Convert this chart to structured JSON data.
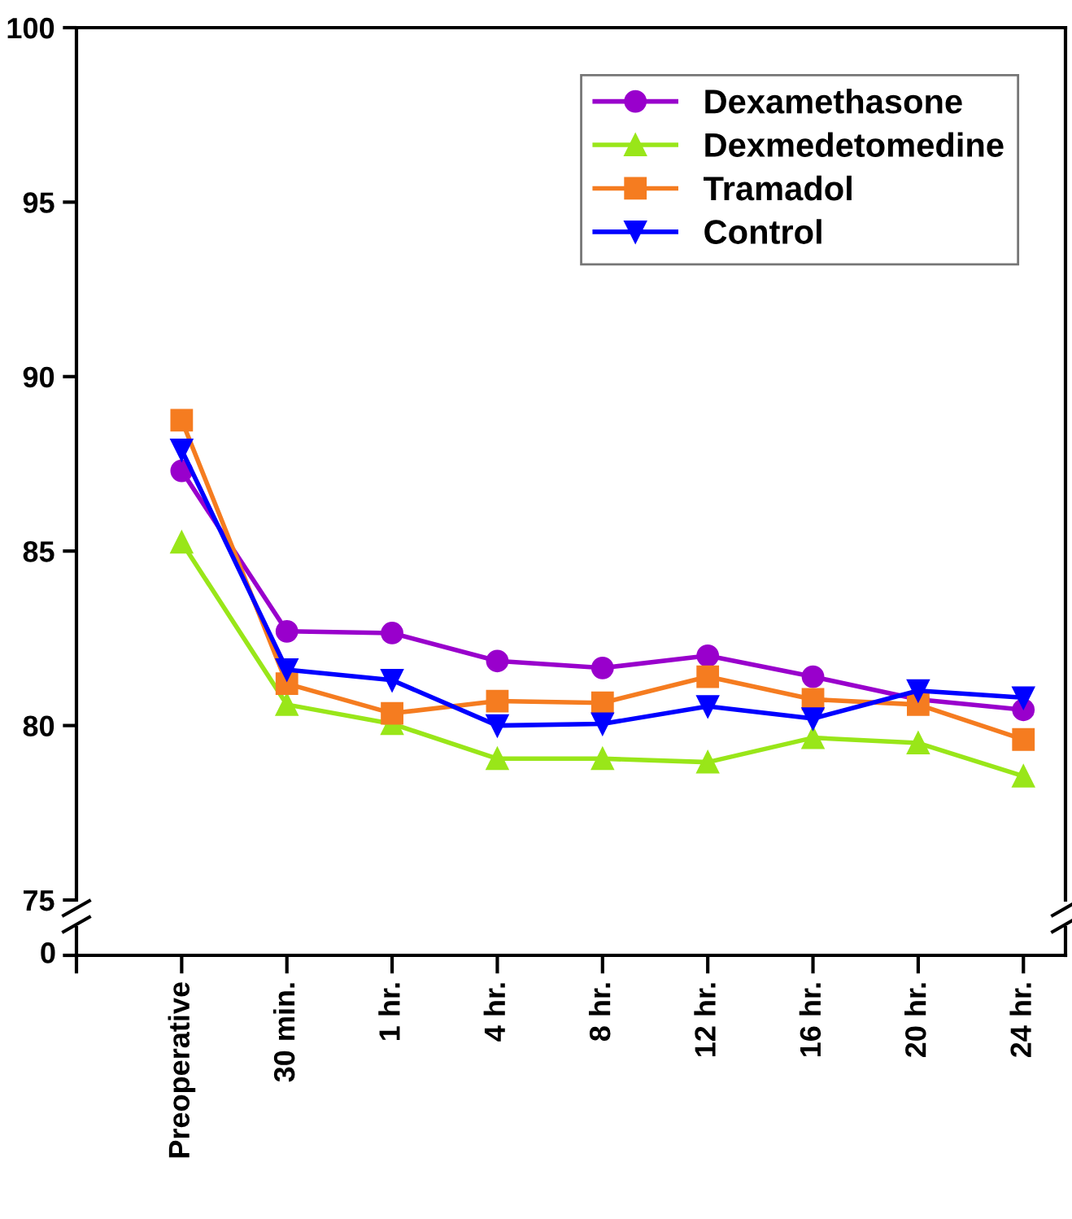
{
  "chart_data": {
    "type": "line",
    "categories": [
      "Preoperative",
      "30 min.",
      "1 hr.",
      "4 hr.",
      "8 hr.",
      "12 hr.",
      "16 hr.",
      "20 hr.",
      "24 hr."
    ],
    "ylim": [
      75,
      100
    ],
    "yticks": [
      75,
      80,
      85,
      90,
      95,
      100
    ],
    "grid": false,
    "legend": "top right",
    "line_style": "solid",
    "annotations": [
      "0"
    ],
    "series": [
      {
        "name": "Dexamethasone",
        "color": "#9900cc",
        "marker": "circle",
        "values": [
          87.3,
          82.7,
          82.65,
          81.85,
          81.65,
          82.0,
          81.4,
          80.75,
          80.45
        ]
      },
      {
        "name": "Dexmedetomedine",
        "color": "#99e619",
        "marker": "triangle",
        "values": [
          85.25,
          80.6,
          80.05,
          79.05,
          79.05,
          78.95,
          79.65,
          79.5,
          78.55
        ]
      },
      {
        "name": "Tramadol",
        "color": "#f57c20",
        "marker": "square",
        "values": [
          88.75,
          81.2,
          80.35,
          80.7,
          80.65,
          81.4,
          80.75,
          80.6,
          79.6
        ]
      },
      {
        "name": "Control",
        "color": "#0000ff",
        "marker": "triangle_down",
        "values": [
          87.9,
          81.6,
          81.3,
          80.0,
          80.05,
          80.55,
          80.2,
          81.0,
          80.8
        ]
      }
    ]
  }
}
